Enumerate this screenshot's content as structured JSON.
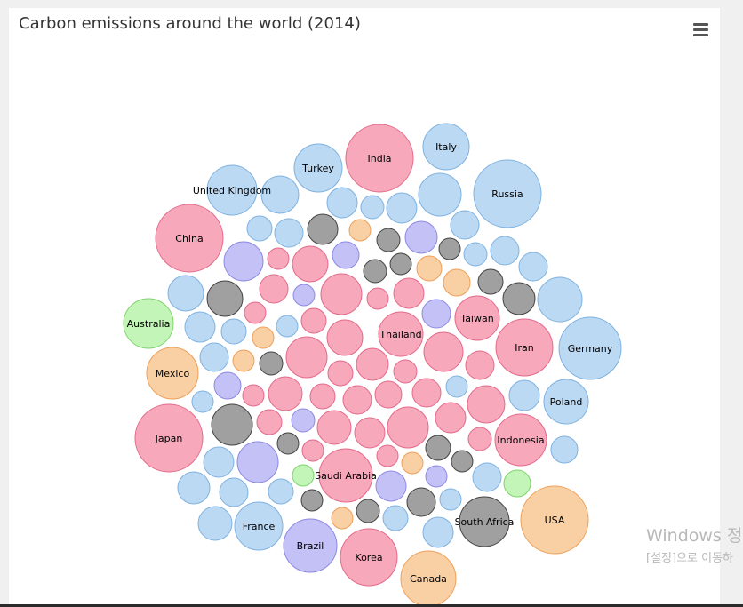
{
  "title": "Carbon emissions around the world (2014)",
  "menu_icon": "hamburger-menu-icon",
  "watermark": {
    "line1": "Windows 정",
    "line2": "[설정]으로 이동하"
  },
  "colors": {
    "europe": "#bcd9f3",
    "europe_border": "#7fb2e0",
    "asia": "#f7a8bb",
    "asia_border": "#e46a8a",
    "africa": "#a0a0a0",
    "africa_border": "#444444",
    "america": "#f9cfa4",
    "america_border": "#eea05a",
    "oceania": "#c4f5b8",
    "oceania_border": "#7ed36c",
    "south_america": "#c3c1f5",
    "south_america_border": "#8d89e3"
  },
  "chart_data": {
    "type": "packed-bubble",
    "title": "Carbon emissions around the world (2014)",
    "labeled_bubbles": [
      {
        "name": "India",
        "group": "asia"
      },
      {
        "name": "Italy",
        "group": "europe"
      },
      {
        "name": "Turkey",
        "group": "europe"
      },
      {
        "name": "United Kingdom",
        "group": "europe"
      },
      {
        "name": "Russia",
        "group": "europe"
      },
      {
        "name": "China",
        "group": "asia"
      },
      {
        "name": "Australia",
        "group": "oceania"
      },
      {
        "name": "Taiwan",
        "group": "asia"
      },
      {
        "name": "Thailand",
        "group": "asia"
      },
      {
        "name": "Iran",
        "group": "asia"
      },
      {
        "name": "Germany",
        "group": "europe"
      },
      {
        "name": "Mexico",
        "group": "america"
      },
      {
        "name": "Poland",
        "group": "europe"
      },
      {
        "name": "Japan",
        "group": "asia"
      },
      {
        "name": "Indonesia",
        "group": "asia"
      },
      {
        "name": "Saudi Arabia",
        "group": "asia"
      },
      {
        "name": "South Africa",
        "group": "africa"
      },
      {
        "name": "USA",
        "group": "america"
      },
      {
        "name": "France",
        "group": "europe"
      },
      {
        "name": "Brazil",
        "group": "south_america"
      },
      {
        "name": "Korea",
        "group": "asia"
      },
      {
        "name": "Canada",
        "group": "america"
      }
    ]
  }
}
